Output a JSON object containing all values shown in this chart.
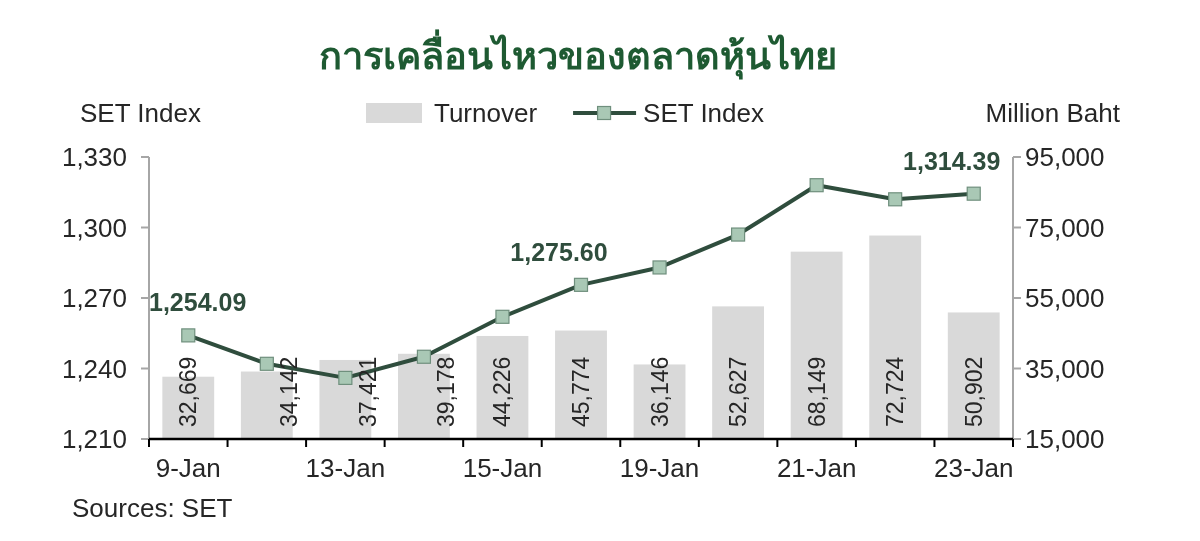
{
  "chart_data": {
    "type": "bar",
    "title": "การเคลื่อนไหวของตลาดหุ้นไทย",
    "ylabel": "SET Index",
    "y2label": "Million Baht",
    "categories": [
      "9-Jan",
      null,
      "13-Jan",
      null,
      "15-Jan",
      null,
      "19-Jan",
      null,
      "21-Jan",
      null,
      "23-Jan"
    ],
    "series": [
      {
        "name": "Turnover",
        "axis": "y2",
        "color": "#d9d9d9",
        "values": [
          32669,
          34142,
          37421,
          39178,
          44226,
          45774,
          36146,
          52627,
          68149,
          72724,
          50902
        ],
        "value_labels": [
          "32,669",
          "34,142",
          "37,421",
          "39,178",
          "44,226",
          "45,774",
          "36,146",
          "52,627",
          "68,149",
          "72,724",
          "50,902"
        ]
      },
      {
        "name": "SET Index",
        "type": "line",
        "axis": "y",
        "color": "#2f4d3d",
        "values": [
          1254.09,
          1242,
          1236,
          1245,
          1262,
          1275.6,
          1283,
          1297,
          1318,
          1312,
          1314.39
        ],
        "value_labels": [
          "1,254.09",
          null,
          null,
          null,
          null,
          "1,275.60",
          null,
          null,
          null,
          null,
          "1,314.39"
        ]
      }
    ],
    "ylim": [
      1210,
      1330
    ],
    "yticks": [
      {
        "value": 1210,
        "label": "1,210"
      },
      {
        "value": 1240,
        "label": "1,240"
      },
      {
        "value": 1270,
        "label": "1,270"
      },
      {
        "value": 1300,
        "label": "1,300"
      },
      {
        "value": 1330,
        "label": "1,330"
      }
    ],
    "y2lim": [
      15000,
      95000
    ],
    "y2ticks": [
      {
        "value": 15000,
        "label": "15,000"
      },
      {
        "value": 35000,
        "label": "35,000"
      },
      {
        "value": 55000,
        "label": "55,000"
      },
      {
        "value": 75000,
        "label": "75,000"
      },
      {
        "value": 95000,
        "label": "95,000"
      }
    ],
    "marker": "square",
    "legend": "top",
    "annotations": [
      "Sources: SET"
    ]
  }
}
